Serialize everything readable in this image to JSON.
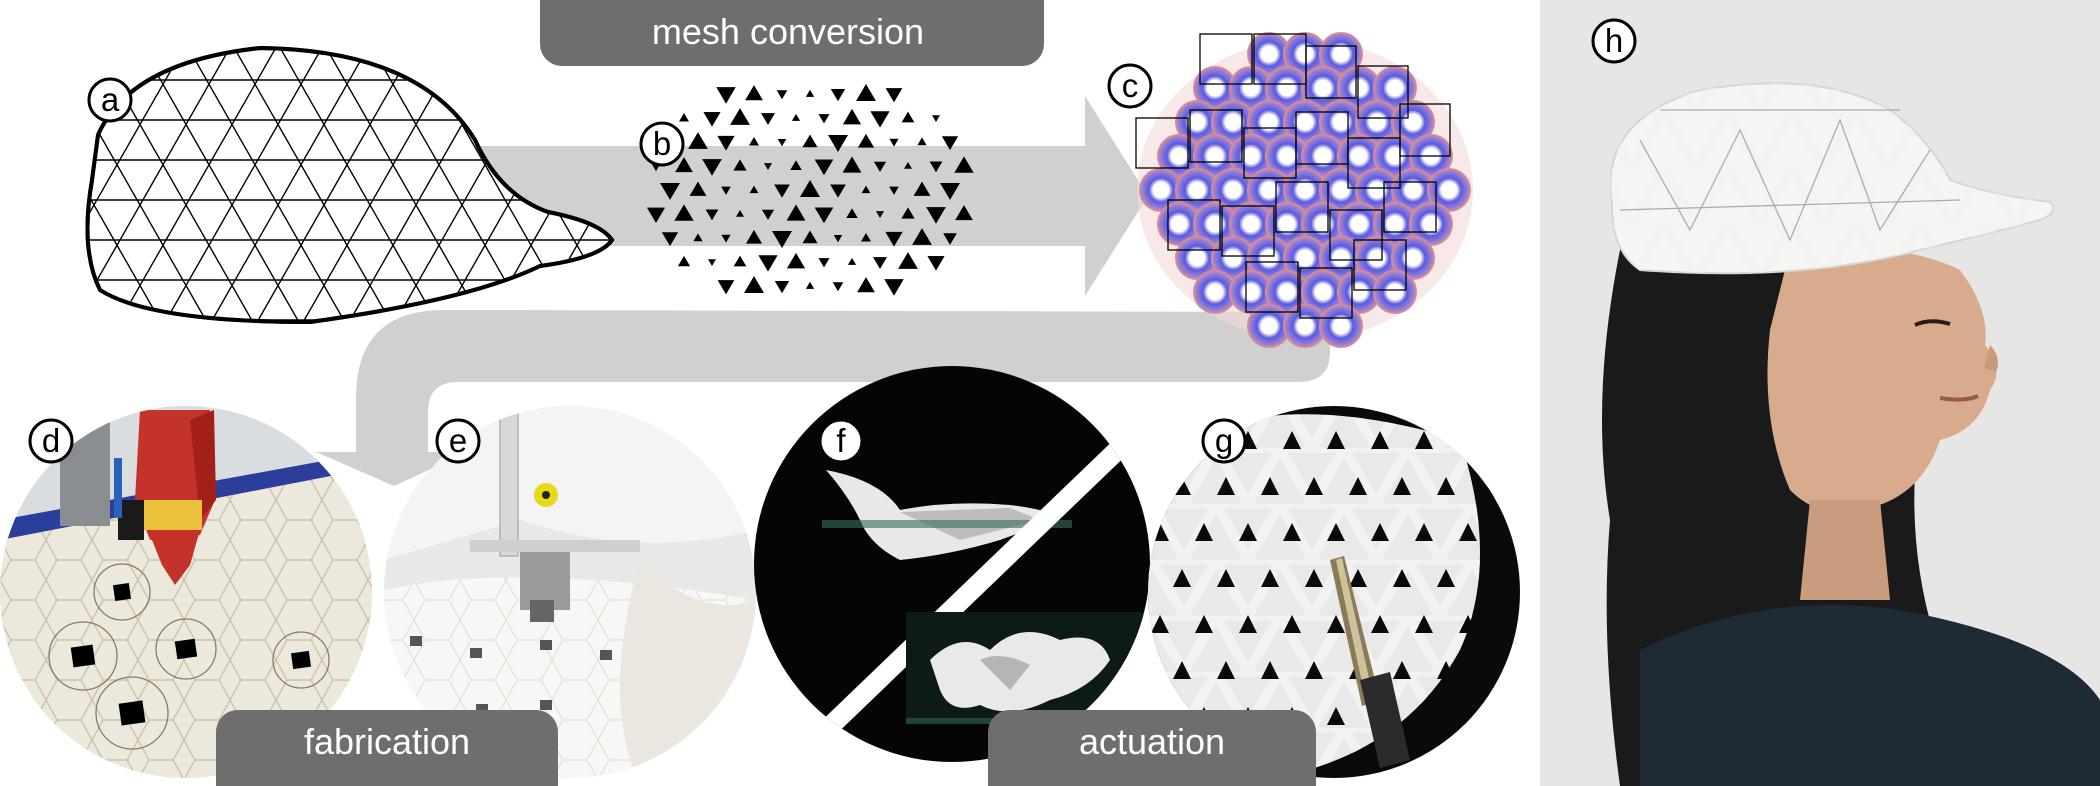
{
  "stages": {
    "mesh_conversion": "mesh conversion",
    "fabrication": "fabrication",
    "actuation": "actuation"
  },
  "panels": {
    "a": "a",
    "b": "b",
    "c": "c",
    "d": "d",
    "e": "e",
    "f": "f",
    "g": "g",
    "h": "h"
  },
  "colors": {
    "pill": "#6e6e6e",
    "arrow": "#d0d0d0",
    "pattern_blue": "#4a4ad8",
    "pattern_red": "#d24a4a"
  }
}
